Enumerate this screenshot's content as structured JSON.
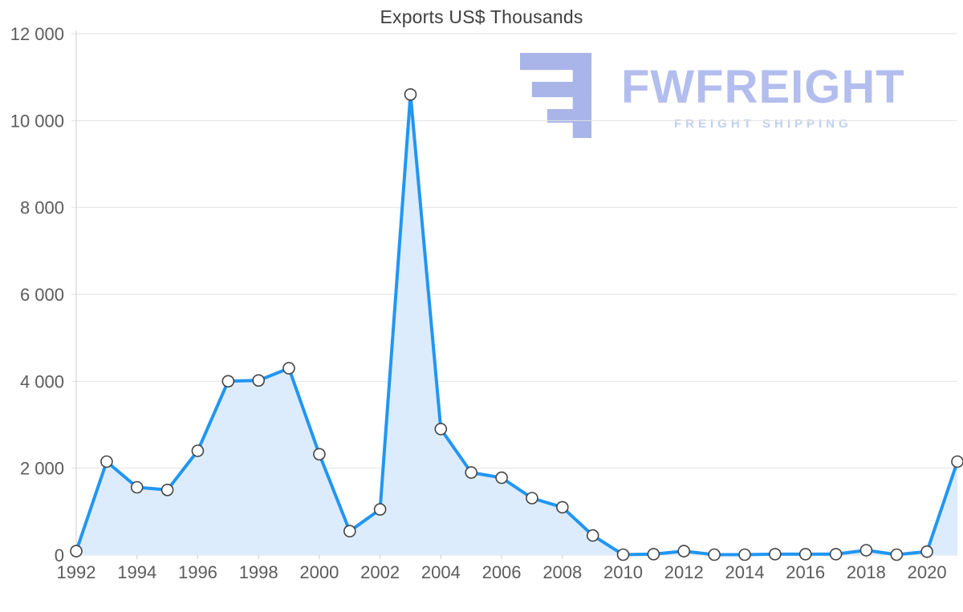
{
  "title": "Exports US$ Thousands",
  "watermark": {
    "brand": "FWFREIGHT",
    "tagline": "FREIGHT SHIPPING",
    "logo_color": "#a9b5e8",
    "text_color": "#b3beee",
    "tagline_color": "#bfcef2"
  },
  "chart_data": {
    "type": "area",
    "title": "Exports US$ Thousands",
    "xlabel": "",
    "ylabel": "",
    "x": [
      1992,
      1993,
      1994,
      1995,
      1996,
      1997,
      1998,
      1999,
      2000,
      2001,
      2002,
      2003,
      2004,
      2005,
      2006,
      2007,
      2008,
      2009,
      2010,
      2011,
      2012,
      2013,
      2014,
      2015,
      2016,
      2017,
      2018,
      2019,
      2020,
      2021
    ],
    "values": [
      90,
      2150,
      1560,
      1500,
      2400,
      4000,
      4020,
      4300,
      2320,
      550,
      1050,
      10600,
      2900,
      1900,
      1780,
      1310,
      1100,
      450,
      10,
      20,
      90,
      10,
      10,
      20,
      20,
      20,
      110,
      10,
      80,
      2150
    ],
    "x_tick_labels": [
      "1992",
      "1994",
      "1996",
      "1998",
      "2000",
      "2002",
      "2004",
      "2006",
      "2008",
      "2010",
      "2012",
      "2014",
      "2016",
      "2018",
      "2020"
    ],
    "y_ticks": [
      0,
      2000,
      4000,
      6000,
      8000,
      10000,
      12000
    ],
    "y_tick_labels": [
      "0",
      "2 000",
      "4 000",
      "6 000",
      "8 000",
      "10 000",
      "12 000"
    ],
    "xlim": [
      1992,
      2021
    ],
    "ylim": [
      0,
      12000
    ],
    "grid": "horizontal",
    "legend": "none",
    "line_color": "#2196f3",
    "fill_color": "#dcecfc",
    "marker_fill": "#ffffff",
    "marker_stroke": "#444444",
    "grid_color": "#e2e2e2",
    "axis_color": "#cfcfcf",
    "tick_label_color": "#5c5c5c"
  }
}
